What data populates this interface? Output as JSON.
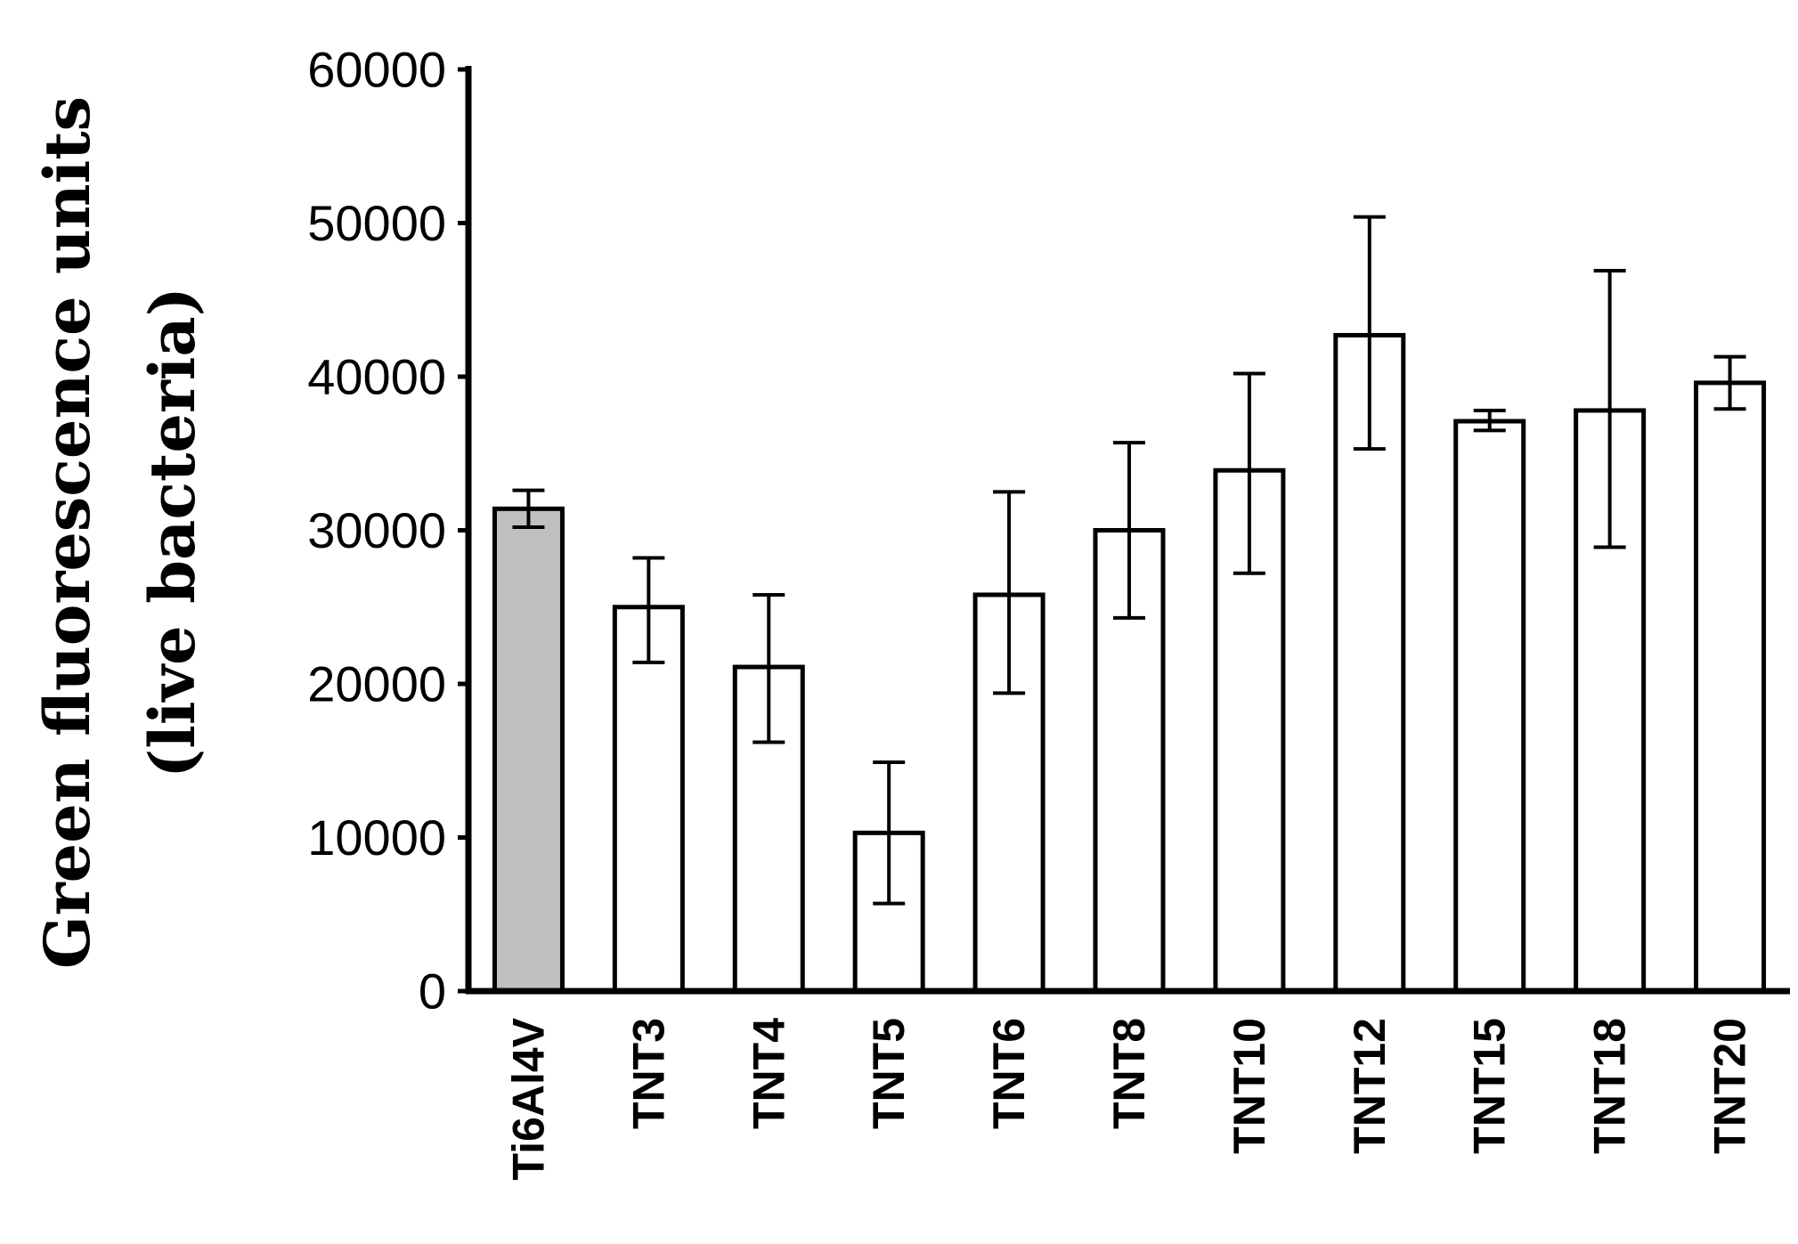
{
  "chart_data": {
    "type": "bar",
    "title": "",
    "xlabel": "",
    "ylabel": [
      "Green fluorescence units",
      "(live bacteria)"
    ],
    "categories": [
      "Ti6Al4V",
      "TNT3",
      "TNT4",
      "TNT5",
      "TNT6",
      "TNT8",
      "TNT10",
      "TNT12",
      "TNT15",
      "TNT18",
      "TNT20"
    ],
    "values": [
      31400,
      25000,
      21100,
      10300,
      25800,
      30000,
      33900,
      42700,
      37100,
      37800,
      39600
    ],
    "error_upper": [
      32600,
      28200,
      25800,
      14900,
      32500,
      35700,
      40200,
      50400,
      37800,
      46900,
      41300
    ],
    "error_lower": [
      30200,
      21400,
      16200,
      5700,
      19400,
      24300,
      27200,
      35300,
      36500,
      28900,
      37900
    ],
    "bar_colors": [
      "#c0c0c0",
      "#ffffff",
      "#ffffff",
      "#ffffff",
      "#ffffff",
      "#ffffff",
      "#ffffff",
      "#ffffff",
      "#ffffff",
      "#ffffff",
      "#ffffff"
    ],
    "yticks": [
      0,
      10000,
      20000,
      30000,
      40000,
      50000,
      60000
    ],
    "ylim": [
      0,
      60000
    ],
    "grid": false,
    "legend": "none"
  }
}
